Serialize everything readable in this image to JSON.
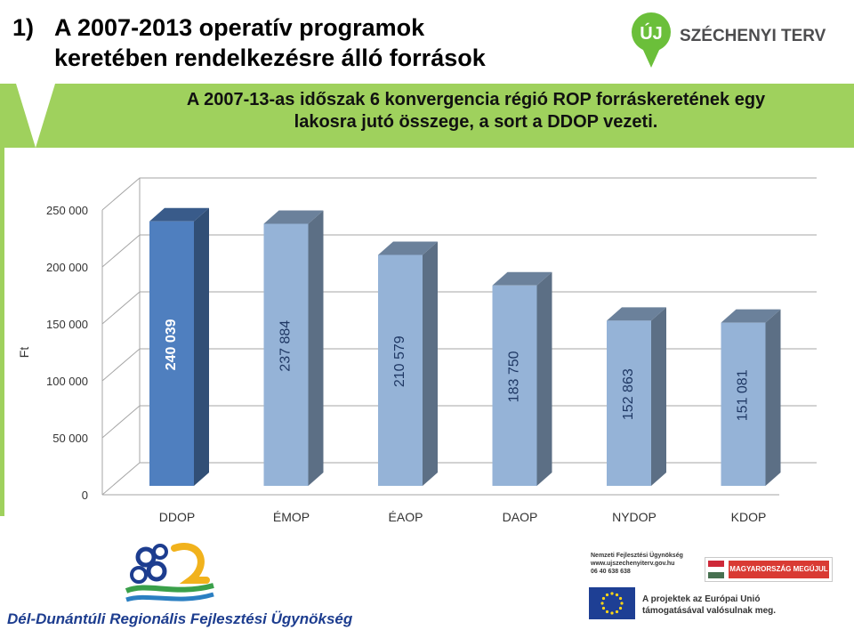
{
  "header": {
    "number": "1)",
    "title_line1": "A 2007-2013 operatív programok",
    "title_line2": "keretében rendelkezésre álló források"
  },
  "logo": {
    "uj": "ÚJ",
    "name": "SZÉCHENYI TERV"
  },
  "band": {
    "line1": "A 2007-13-as időszak 6 konvergencia régió ROP forráskeretének egy",
    "line2": "lakosra jutó összege, a sort a DDOP vezeti."
  },
  "chart_data": {
    "type": "bar",
    "categories": [
      "DDOP",
      "ÉMOP",
      "ÉAOP",
      "DAOP",
      "NYDOP",
      "KDOP"
    ],
    "values": [
      240039,
      237884,
      210579,
      183750,
      152863,
      151081
    ],
    "value_labels": [
      "240 039",
      "237 884",
      "210 579",
      "183 750",
      "152 863",
      "151 081"
    ],
    "ylabel": "Ft",
    "ylim": [
      0,
      250000
    ],
    "yticks": [
      0,
      50000,
      100000,
      150000,
      200000,
      250000
    ],
    "ytick_labels": [
      "0",
      "50 000",
      "100 000",
      "150 000",
      "200 000",
      "250 000"
    ],
    "grid": true,
    "three_d": true,
    "colors": {
      "highlight": "#4f7fbf",
      "default": "#95b3d7",
      "highlight_text": "#ffffff",
      "default_text": "#1f3864"
    }
  },
  "footer": {
    "agency": "Dél-Dunántúli Regionális Fejlesztési Ügynökség",
    "nfu_line1": "Nemzeti Fejlesztési Ügynökség",
    "nfu_line2": "www.ujszechenyiterv.gov.hu",
    "nfu_line3": "06 40 638 638",
    "magyar": "MAGYARORSZÁG MEGÚJUL",
    "eu_line1": "A projektek az Európai Unió",
    "eu_line2": "támogatásával valósulnak meg."
  },
  "colors": {
    "green": "#9fd15d",
    "logo_green": "#6bbf3a",
    "logo_text": "#4d4d4f",
    "agency_blue": "#1d3d8f"
  }
}
